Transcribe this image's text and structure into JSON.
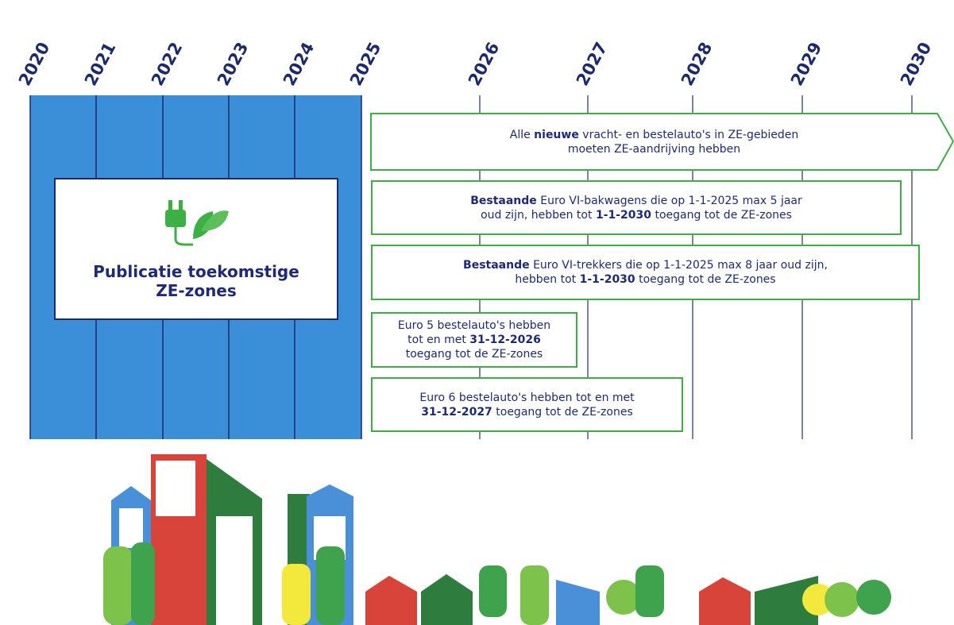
{
  "timeline": {
    "years": [
      "2020",
      "2021",
      "2022",
      "2023",
      "2024",
      "2025",
      "2026",
      "2027",
      "2028",
      "2029",
      "2030"
    ]
  },
  "publication": {
    "lines": [
      "Publicatie toekomstige",
      "ZE-zones"
    ]
  },
  "boxes": [
    {
      "lines": [
        [
          {
            "text": "Alle ",
            "bold": false
          },
          {
            "text": "nieuwe",
            "bold": true
          },
          {
            "text": " vracht- en bestelauto's in ZE-gebieden",
            "bold": false
          }
        ],
        [
          {
            "text": "moeten ZE-aandrijving hebben",
            "bold": false
          }
        ]
      ]
    },
    {
      "lines": [
        [
          {
            "text": "Bestaande",
            "bold": true
          },
          {
            "text": " Euro VI-bakwagens die op 1-1-2025 max 5 jaar",
            "bold": false
          }
        ],
        [
          {
            "text": "oud zijn, hebben tot ",
            "bold": false
          },
          {
            "text": "1-1-2030",
            "bold": true
          },
          {
            "text": " toegang tot de ZE-zones",
            "bold": false
          }
        ]
      ]
    },
    {
      "lines": [
        [
          {
            "text": "Bestaande",
            "bold": true
          },
          {
            "text": " Euro VI-trekkers die op 1-1-2025 max 8 jaar oud zijn,",
            "bold": false
          }
        ],
        [
          {
            "text": "hebben tot ",
            "bold": false
          },
          {
            "text": "1-1-2030",
            "bold": true
          },
          {
            "text": " toegang tot de ZE-zones",
            "bold": false
          }
        ]
      ]
    },
    {
      "lines": [
        [
          {
            "text": "Euro 5 bestelauto's hebben",
            "bold": false
          }
        ],
        [
          {
            "text": "tot en met ",
            "bold": false
          },
          {
            "text": "31-12-2026",
            "bold": true
          }
        ],
        [
          {
            "text": "toegang tot de ZE-zones",
            "bold": false
          }
        ]
      ]
    },
    {
      "lines": [
        [
          {
            "text": "Euro 6 bestelauto's hebben tot en met",
            "bold": false
          }
        ],
        [
          {
            "text": "31-12-2027",
            "bold": true
          },
          {
            "text": " toegang tot de ZE-zones",
            "bold": false
          }
        ]
      ]
    }
  ]
}
